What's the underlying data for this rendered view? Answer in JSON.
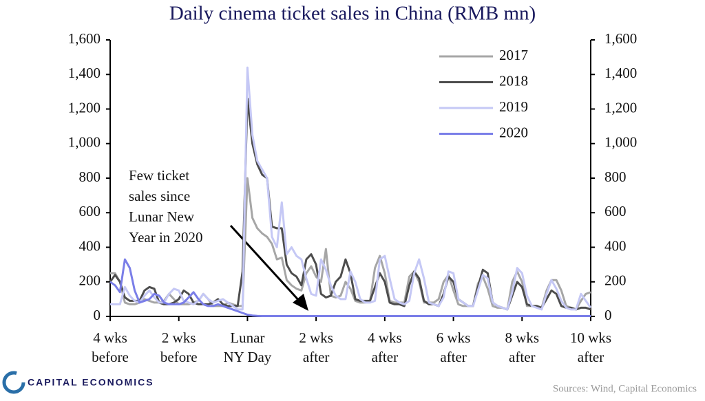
{
  "chart_data": {
    "type": "line",
    "title": "Daily cinema ticket sales in China (RMB mn)",
    "annotation": "Few ticket\nsales since\nLunar New\nYear in 2020",
    "source": "Sources: Wind, Capital Economics",
    "brand": "CAPITAL ECONOMICS",
    "x": [
      -28,
      -27,
      -26,
      -25,
      -24,
      -23,
      -22,
      -21,
      -20,
      -19,
      -18,
      -17,
      -16,
      -15,
      -14,
      -13,
      -12,
      -11,
      -10,
      -9,
      -8,
      -7,
      -6,
      -5,
      -4,
      -3,
      -2,
      -1,
      0,
      1,
      2,
      3,
      4,
      5,
      6,
      7,
      8,
      9,
      10,
      11,
      12,
      13,
      14,
      15,
      16,
      17,
      18,
      19,
      20,
      21,
      22,
      23,
      24,
      25,
      26,
      27,
      28,
      29,
      30,
      31,
      32,
      33,
      34,
      35,
      36,
      37,
      38,
      39,
      40,
      41,
      42,
      43,
      44,
      45,
      46,
      47,
      48,
      49,
      50,
      51,
      52,
      53,
      54,
      55,
      56,
      57,
      58,
      59,
      60,
      61,
      62,
      63,
      64,
      65,
      66,
      67,
      68,
      69,
      70
    ],
    "series": [
      {
        "name": "2017",
        "color": "#a6a6a6",
        "values": [
          250,
          250,
          200,
          80,
          70,
          70,
          80,
          100,
          90,
          80,
          80,
          90,
          130,
          100,
          70,
          70,
          70,
          80,
          90,
          130,
          100,
          60,
          60,
          60,
          80,
          70,
          60,
          60,
          800,
          570,
          510,
          480,
          460,
          420,
          330,
          340,
          210,
          180,
          160,
          150,
          250,
          290,
          230,
          200,
          390,
          120,
          110,
          120,
          200,
          160,
          90,
          80,
          80,
          90,
          280,
          350,
          250,
          90,
          80,
          80,
          80,
          230,
          260,
          200,
          80,
          80,
          80,
          100,
          200,
          240,
          150,
          70,
          60,
          60,
          60,
          190,
          230,
          160,
          60,
          50,
          50,
          40,
          200,
          260,
          200,
          60,
          60,
          60,
          50,
          150,
          210,
          210,
          150,
          60,
          50,
          40,
          90,
          130,
          140
        ]
      },
      {
        "name": "2018",
        "color": "#4d4d4d",
        "values": [
          200,
          240,
          200,
          110,
          90,
          90,
          90,
          150,
          170,
          160,
          80,
          70,
          70,
          80,
          100,
          150,
          130,
          80,
          70,
          70,
          70,
          80,
          100,
          70,
          60,
          60,
          60,
          260,
          1260,
          1000,
          880,
          820,
          800,
          520,
          510,
          510,
          300,
          250,
          230,
          180,
          330,
          360,
          300,
          130,
          110,
          120,
          200,
          230,
          330,
          250,
          100,
          90,
          90,
          90,
          170,
          250,
          200,
          80,
          70,
          70,
          60,
          180,
          260,
          220,
          90,
          70,
          70,
          60,
          130,
          230,
          200,
          100,
          80,
          60,
          60,
          170,
          270,
          250,
          80,
          60,
          50,
          40,
          120,
          200,
          170,
          70,
          60,
          60,
          50,
          100,
          150,
          130,
          60,
          50,
          50,
          40,
          50,
          50,
          40
        ]
      },
      {
        "name": "2019",
        "color": "#c5c8f5",
        "values": [
          70,
          70,
          70,
          170,
          120,
          90,
          80,
          120,
          150,
          110,
          80,
          80,
          130,
          160,
          150,
          90,
          80,
          70,
          90,
          130,
          100,
          80,
          90,
          100,
          80,
          60,
          40,
          40,
          1440,
          1050,
          900,
          850,
          800,
          460,
          400,
          660,
          360,
          400,
          350,
          330,
          220,
          130,
          120,
          330,
          270,
          180,
          120,
          100,
          100,
          260,
          200,
          100,
          80,
          80,
          90,
          330,
          350,
          220,
          100,
          80,
          70,
          90,
          250,
          330,
          220,
          80,
          70,
          60,
          110,
          260,
          250,
          100,
          80,
          60,
          60,
          150,
          240,
          220,
          80,
          60,
          50,
          40,
          140,
          280,
          250,
          120,
          60,
          50,
          40,
          130,
          210,
          160,
          90,
          50,
          40,
          40,
          130,
          90,
          50
        ]
      },
      {
        "name": "2020",
        "color": "#7a7ee8",
        "values": [
          200,
          180,
          140,
          330,
          280,
          150,
          80,
          90,
          100,
          130,
          120,
          80,
          70,
          70,
          70,
          80,
          110,
          140,
          100,
          70,
          60,
          60,
          70,
          60,
          50,
          40,
          30,
          20,
          10,
          5,
          3,
          2,
          2,
          2,
          2,
          2,
          2,
          2,
          2,
          2,
          2,
          2,
          2,
          2,
          2,
          2,
          2,
          2,
          2,
          2,
          2,
          2,
          2,
          2,
          2,
          2,
          2,
          2,
          2,
          2,
          2,
          2,
          2,
          2,
          2,
          2,
          2,
          2,
          2,
          2,
          2,
          2,
          2,
          2,
          2,
          2,
          2,
          2,
          2,
          2,
          2,
          2,
          2,
          2,
          2,
          2,
          2,
          2,
          2,
          2,
          2,
          2,
          2,
          2,
          2,
          2,
          2,
          2,
          2
        ]
      }
    ],
    "xlim": [
      -28,
      70
    ],
    "xticks": [
      {
        "value": -28,
        "label": "4 wks\nbefore"
      },
      {
        "value": -14,
        "label": "2 wks\nbefore"
      },
      {
        "value": 0,
        "label": "Lunar\nNY Day"
      },
      {
        "value": 14,
        "label": "2 wks\nafter"
      },
      {
        "value": 28,
        "label": "4 wks\nafter"
      },
      {
        "value": 42,
        "label": "6 wks\nafter"
      },
      {
        "value": 56,
        "label": "8 wks\nafter"
      },
      {
        "value": 70,
        "label": "10 wks\nafter"
      }
    ],
    "ylim": [
      0,
      1600
    ],
    "yticks": [
      0,
      200,
      400,
      600,
      800,
      {
        "value": 1000,
        "label": "1,000"
      },
      {
        "value": 1200,
        "label": "1,200"
      },
      {
        "value": 1400,
        "label": "1,400"
      },
      {
        "value": 1600,
        "label": "1,600"
      }
    ],
    "y2lim": [
      0,
      1600
    ],
    "y2ticks": [
      0,
      200,
      400,
      600,
      800,
      {
        "value": 1000,
        "label": "1,000"
      },
      {
        "value": 1200,
        "label": "1,200"
      },
      {
        "value": 1400,
        "label": "1,400"
      },
      {
        "value": 1600,
        "label": "1,600"
      }
    ],
    "legend": "upper right"
  }
}
